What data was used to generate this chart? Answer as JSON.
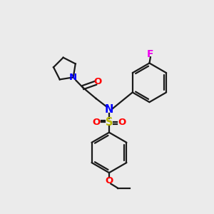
{
  "bg_color": "#ebebeb",
  "bond_color": "#1a1a1a",
  "N_color": "#0000ff",
  "O_color": "#ff0000",
  "S_color": "#b8b800",
  "F_color": "#ee00ee",
  "lw": 1.6,
  "dbo": 0.07,
  "figsize": [
    3.0,
    3.0
  ],
  "dpi": 100,
  "xlim": [
    0,
    10
  ],
  "ylim": [
    0,
    10
  ]
}
